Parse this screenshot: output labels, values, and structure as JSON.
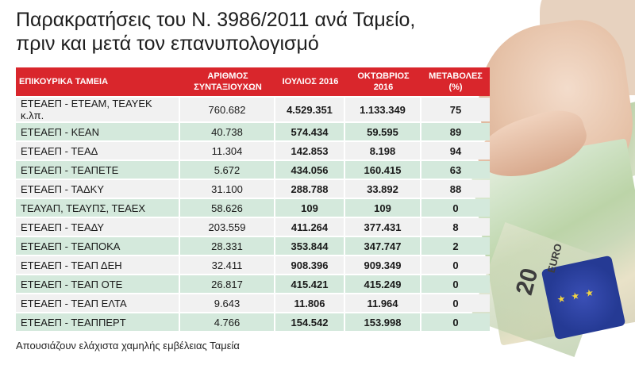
{
  "title": {
    "line1": "Παρακρατήσεις του Ν. 3986/2011 ανά Ταμείο,",
    "line2": "πριν και μετά τον επανυπολογισμό"
  },
  "table": {
    "headers": [
      "ΕΠΙΚΟΥΡΙΚΑ ΤΑΜΕΙΑ",
      "ΑΡΙΘΜΟΣ ΣΥΝΤΑΞΙΟΥΧΩΝ",
      "ΙΟΥΛΙΟΣ 2016",
      "ΟΚΤΩΒΡΙΟΣ 2016",
      "ΜΕΤΑΒΟΛΕΣ (%)"
    ],
    "rows": [
      {
        "fund": "ΕΤΕΑΕΠ - ΕΤΕΑΜ, ΤΕΑΥΕΚ κ.λπ.",
        "pensioners": "760.682",
        "july": "4.529.351",
        "october": "1.133.349",
        "change": "75"
      },
      {
        "fund": "ΕΤΕΑΕΠ - ΚΕΑΝ",
        "pensioners": "40.738",
        "july": "574.434",
        "october": "59.595",
        "change": "89"
      },
      {
        "fund": "ΕΤΕΑΕΠ - ΤΕΑΔ",
        "pensioners": "11.304",
        "july": "142.853",
        "october": "8.198",
        "change": "94"
      },
      {
        "fund": "ΕΤΕΑΕΠ - ΤΕΑΠΕΤΕ",
        "pensioners": "5.672",
        "july": "434.056",
        "october": "160.415",
        "change": "63"
      },
      {
        "fund": "ΕΤΕΑΕΠ - ΤΑΔΚΥ",
        "pensioners": "31.100",
        "july": "288.788",
        "october": "33.892",
        "change": "88"
      },
      {
        "fund": "ΤΕΑΥΑΠ, ΤΕΑΥΠΣ, ΤΕΑΕΧ",
        "pensioners": "58.626",
        "july": "109",
        "october": "109",
        "change": "0"
      },
      {
        "fund": "ΕΤΕΑΕΠ - ΤΕΑΔΥ",
        "pensioners": "203.559",
        "july": "411.264",
        "october": "377.431",
        "change": "8"
      },
      {
        "fund": "ΕΤΕΑΕΠ - ΤΕΑΠΟΚΑ",
        "pensioners": "28.331",
        "july": "353.844",
        "october": "347.747",
        "change": "2"
      },
      {
        "fund": "ΕΤΕΑΕΠ - ΤΕΑΠ ΔΕΗ",
        "pensioners": "32.411",
        "july": "908.396",
        "october": "909.349",
        "change": "0"
      },
      {
        "fund": "ΕΤΕΑΕΠ - ΤΕΑΠ ΟΤΕ",
        "pensioners": "26.817",
        "july": "415.421",
        "october": "415.249",
        "change": "0"
      },
      {
        "fund": "ΕΤΕΑΕΠ - ΤΕΑΠ ΕΛΤΑ",
        "pensioners": "9.643",
        "july": "11.806",
        "october": "11.964",
        "change": "0"
      },
      {
        "fund": "ΕΤΕΑΕΠ - ΤΕΑΠΠΕΡΤ",
        "pensioners": "4.766",
        "july": "154.542",
        "october": "153.998",
        "change": "0"
      }
    ]
  },
  "footnote": "Απουσιάζουν ελάχιστα χαμηλής εμβέλειας Ταμεία",
  "photo": {
    "note_value": "20",
    "note_currency": "EURO",
    "icon": "euro-banknotes-hand-photo"
  },
  "colors": {
    "header_red": "#d9262c",
    "row_grey": "#f1f1f1",
    "row_green": "#d4e9dc"
  }
}
